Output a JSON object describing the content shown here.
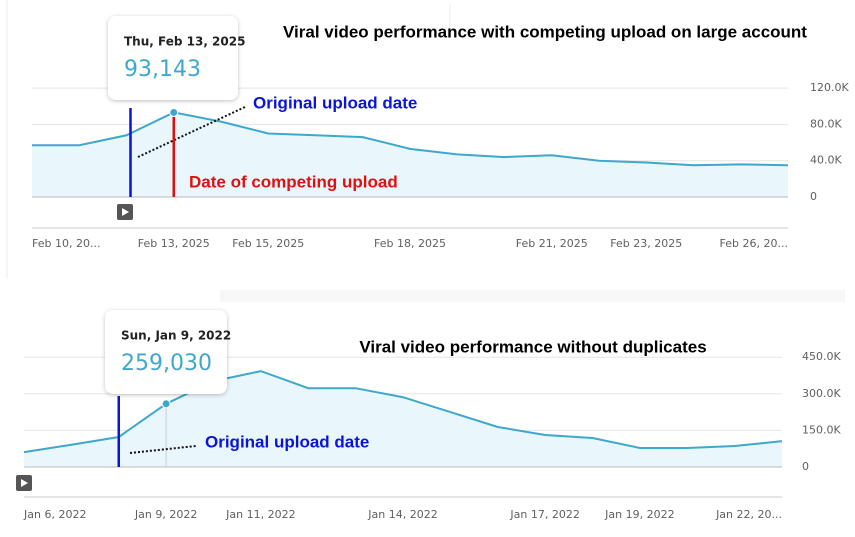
{
  "chart_data": [
    {
      "type": "line",
      "title": "Viral video performance with competing upload on large account",
      "categories": [
        "Feb 10, 20...",
        null,
        null,
        "Feb 13, 2025",
        null,
        "Feb 15, 2025",
        null,
        null,
        "Feb 18, 2025",
        null,
        null,
        "Feb 21, 2025",
        null,
        "Feb 23, 2025",
        null,
        null,
        "Feb 26, 20..."
      ],
      "series": [
        {
          "color": "#3ea8cc",
          "values": [
            57000,
            57000,
            68000,
            93143,
            83000,
            70000,
            68000,
            66000,
            53000,
            47000,
            44000,
            46000,
            40000,
            38000,
            35000,
            36000,
            35000
          ]
        }
      ],
      "ylim": [
        0,
        130000
      ],
      "yticks": [
        0,
        {
          "value": 40000,
          "label": "40.0K"
        },
        {
          "value": 80000,
          "label": "80.0K"
        },
        {
          "value": 120000,
          "label": "120.0K"
        }
      ],
      "grid": true,
      "tooltip": {
        "index": 3,
        "date": "Thu, Feb 13, 2025",
        "value_label": "93,143"
      },
      "markers": [
        {
          "index": 2,
          "color": "#0a14d6",
          "text": "Original upload date"
        },
        {
          "index": 3,
          "color": "#e01010",
          "text": "Date of competing upload"
        }
      ]
    },
    {
      "type": "line",
      "title": "Viral video performance without duplicates",
      "categories": [
        "Jan 6, 2022",
        null,
        null,
        "Jan 9, 2022",
        null,
        "Jan 11, 2022",
        null,
        null,
        "Jan 14, 2022",
        null,
        null,
        "Jan 17, 2022",
        null,
        "Jan 19, 2022",
        null,
        null,
        "Jan 22, 20..."
      ],
      "series": [
        {
          "color": "#3ea8cc",
          "values": [
            61000,
            91000,
            123000,
            259030,
            352000,
            393000,
            323000,
            323000,
            286000,
            225000,
            164000,
            131000,
            119000,
            78000,
            78000,
            86000,
            106000
          ]
        }
      ],
      "ylim": [
        0,
        500000
      ],
      "yticks": [
        0,
        {
          "value": 150000,
          "label": "150.0K"
        },
        {
          "value": 300000,
          "label": "300.0K"
        },
        {
          "value": 450000,
          "label": "450.0K"
        }
      ],
      "grid": true,
      "tooltip": {
        "index": 3,
        "date": "Sun, Jan 9, 2022",
        "value_label": "259,030"
      },
      "markers": [
        {
          "index": 2,
          "color": "#0a14d6",
          "text": "Original upload date"
        }
      ]
    }
  ]
}
